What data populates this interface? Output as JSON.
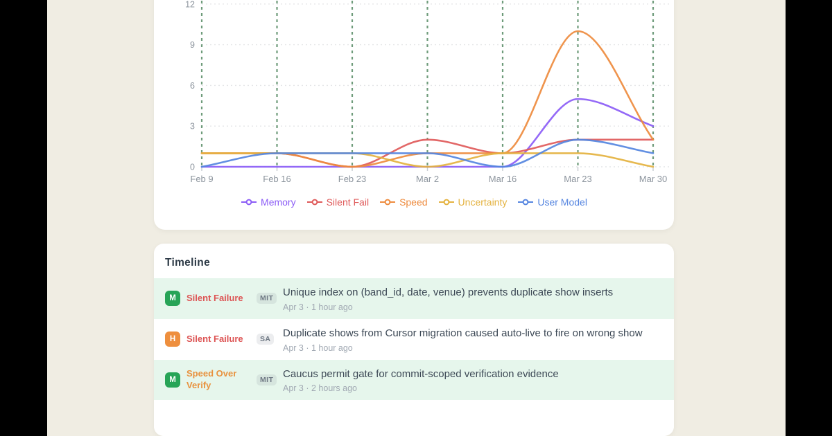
{
  "colors": {
    "page_bg": "#f0ede3",
    "letterbox": "#000000",
    "card_bg": "#ffffff",
    "grid_vertical_green": "#558a63",
    "grid_horizontal": "#e4e5e7",
    "axis_text": "#8d959e",
    "tick_mark": "#c9cdd2",
    "row_highlight_bg": "#e6f6ec",
    "title_text": "#3c4855",
    "meta_text": "#a1a9b3"
  },
  "chart_data": {
    "type": "line",
    "title": "",
    "xlabel": "",
    "ylabel": "",
    "categories": [
      "Feb 9",
      "Feb 16",
      "Feb 23",
      "Mar 2",
      "Mar 16",
      "Mar 23",
      "Mar 30"
    ],
    "series": [
      {
        "name": "Memory",
        "color": "#8b5cf6",
        "values": [
          0,
          0,
          0,
          0,
          0,
          5,
          3
        ]
      },
      {
        "name": "Silent Fail",
        "color": "#df5a5a",
        "values": [
          1,
          1,
          0,
          2,
          1,
          2,
          2
        ]
      },
      {
        "name": "Speed",
        "color": "#ee8b3e",
        "values": [
          1,
          1,
          0,
          1,
          1,
          10,
          2
        ]
      },
      {
        "name": "Uncertainty",
        "color": "#e4b23f",
        "values": [
          1,
          1,
          1,
          0,
          1,
          1,
          0
        ]
      },
      {
        "name": "User Model",
        "color": "#5585e0",
        "values": [
          0,
          1,
          1,
          1,
          0,
          2,
          1
        ]
      }
    ],
    "ylim": [
      0,
      12
    ],
    "yticks": [
      0,
      3,
      6,
      9,
      12
    ],
    "grid": {
      "vertical": "green dashed",
      "horizontal": "light dotted"
    },
    "legend_position": "bottom"
  },
  "timeline": {
    "heading": "Timeline",
    "rows": [
      {
        "severity": "M",
        "severity_color": "#27a457",
        "category": "Silent Failure",
        "category_color": "#dd5454",
        "tag": "MIT",
        "title": "Unique index on (band_id, date, venue) prevents duplicate show inserts",
        "meta": "Apr 3 · 1 hour ago",
        "highlighted": true
      },
      {
        "severity": "H",
        "severity_color": "#ee8f3e",
        "category": "Silent Failure",
        "category_color": "#dd5454",
        "tag": "SA",
        "title": "Duplicate shows from Cursor migration caused auto-live to fire on wrong show",
        "meta": "Apr 3 · 1 hour ago",
        "highlighted": false
      },
      {
        "severity": "M",
        "severity_color": "#27a457",
        "category": "Speed Over Verify",
        "category_color": "#e8923f",
        "tag": "MIT",
        "title": "Caucus permit gate for commit-scoped verification evidence",
        "meta": "Apr 3 · 2 hours ago",
        "highlighted": true
      }
    ]
  }
}
